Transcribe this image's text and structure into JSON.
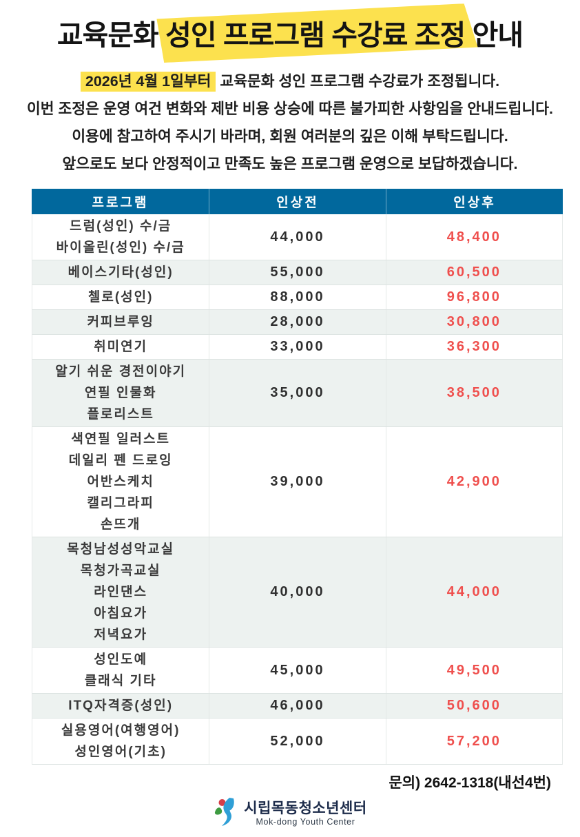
{
  "title": {
    "prefix": "교육문화 ",
    "highlighted": "성인 프로그램 수강료 조정",
    "suffix": " 안내"
  },
  "intro": {
    "line1_highlight": "2026년 4월 1일부터",
    "line1_rest": " 교육문화 성인 프로그램 수강료가 조정됩니다.",
    "lines": [
      "이번 조정은 운영 여건 변화와 제반 비용 상승에 따른 불가피한 사항임을 안내드립니다.",
      "이용에 참고하여 주시기 바라며, 회원 여러분의 깊은 이해 부탁드립니다.",
      "앞으로도 보다 안정적이고 만족도 높은 프로그램 운영으로 보답하겠습니다."
    ]
  },
  "table": {
    "headers": [
      "프로그램",
      "인상전",
      "인상후"
    ],
    "rows": [
      {
        "programs": [
          "드럼(성인) 수/금",
          "바이올린(성인) 수/금"
        ],
        "before": "44,000",
        "after": "48,400"
      },
      {
        "programs": [
          "베이스기타(성인)"
        ],
        "before": "55,000",
        "after": "60,500"
      },
      {
        "programs": [
          "첼로(성인)"
        ],
        "before": "88,000",
        "after": "96,800"
      },
      {
        "programs": [
          "커피브루잉"
        ],
        "before": "28,000",
        "after": "30,800"
      },
      {
        "programs": [
          "취미연기"
        ],
        "before": "33,000",
        "after": "36,300"
      },
      {
        "programs": [
          "알기 쉬운 경전이야기",
          "연필 인물화",
          "플로리스트"
        ],
        "before": "35,000",
        "after": "38,500"
      },
      {
        "programs": [
          "색연필 일러스트",
          "데일리 펜 드로잉",
          "어반스케치",
          "캘리그라피",
          "손뜨개"
        ],
        "before": "39,000",
        "after": "42,900"
      },
      {
        "programs": [
          "목청남성성악교실",
          "목청가곡교실",
          "라인댄스",
          "아침요가",
          "저녁요가"
        ],
        "before": "40,000",
        "after": "44,000"
      },
      {
        "programs": [
          "성인도예",
          "클래식 기타"
        ],
        "before": "45,000",
        "after": "49,500"
      },
      {
        "programs": [
          "ITQ자격증(성인)"
        ],
        "before": "46,000",
        "after": "50,600"
      },
      {
        "programs": [
          "실용영어(여행영어)",
          "성인영어(기초)"
        ],
        "before": "52,000",
        "after": "57,200"
      }
    ]
  },
  "contact": "문의) 2642-1318(내선4번)",
  "footer_logo": {
    "name_kr": "시립목동청소년센터",
    "name_en": "Mok-dong Youth Center"
  },
  "colors": {
    "header_bg": "#01689d",
    "row_stripe": "#edf2f0",
    "price_after_red": "#ef4f4d",
    "highlight_yellow": "#fce14e"
  }
}
